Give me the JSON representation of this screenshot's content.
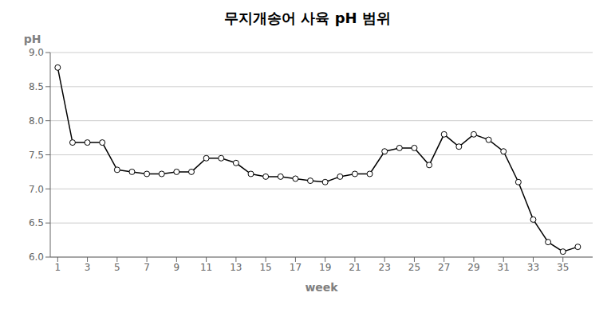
{
  "chart_data": {
    "type": "line",
    "title": "무지개송어 사육 pH 범위",
    "x_label": "week",
    "y_label": "pH",
    "x": [
      1,
      2,
      3,
      4,
      5,
      6,
      7,
      8,
      9,
      10,
      11,
      12,
      13,
      14,
      15,
      16,
      17,
      18,
      19,
      20,
      21,
      22,
      23,
      24,
      25,
      26,
      27,
      28,
      29,
      30,
      31,
      32,
      33,
      34,
      35,
      36
    ],
    "values": [
      8.78,
      7.68,
      7.68,
      7.68,
      7.28,
      7.25,
      7.22,
      7.22,
      7.25,
      7.25,
      7.45,
      7.45,
      7.38,
      7.22,
      7.18,
      7.18,
      7.15,
      7.12,
      7.1,
      7.18,
      7.22,
      7.22,
      7.55,
      7.6,
      7.6,
      7.35,
      7.8,
      7.62,
      7.8,
      7.72,
      7.55,
      7.1,
      6.55,
      6.22,
      6.08,
      6.15
    ],
    "xlim": [
      0.5,
      37
    ],
    "xticks": [
      1,
      3,
      5,
      7,
      9,
      11,
      13,
      15,
      17,
      19,
      21,
      23,
      25,
      27,
      29,
      31,
      33,
      35
    ],
    "ylim": [
      6.0,
      9.0
    ],
    "yticks": [
      {
        "value": 6.0,
        "label": "6.0"
      },
      6.5,
      {
        "value": 7.0,
        "label": "7.0"
      },
      7.5,
      {
        "value": 8.0,
        "label": "8.0"
      },
      8.5,
      {
        "value": 9.0,
        "label": "9.0"
      }
    ],
    "grid": true,
    "color": "black",
    "marker": "o"
  }
}
